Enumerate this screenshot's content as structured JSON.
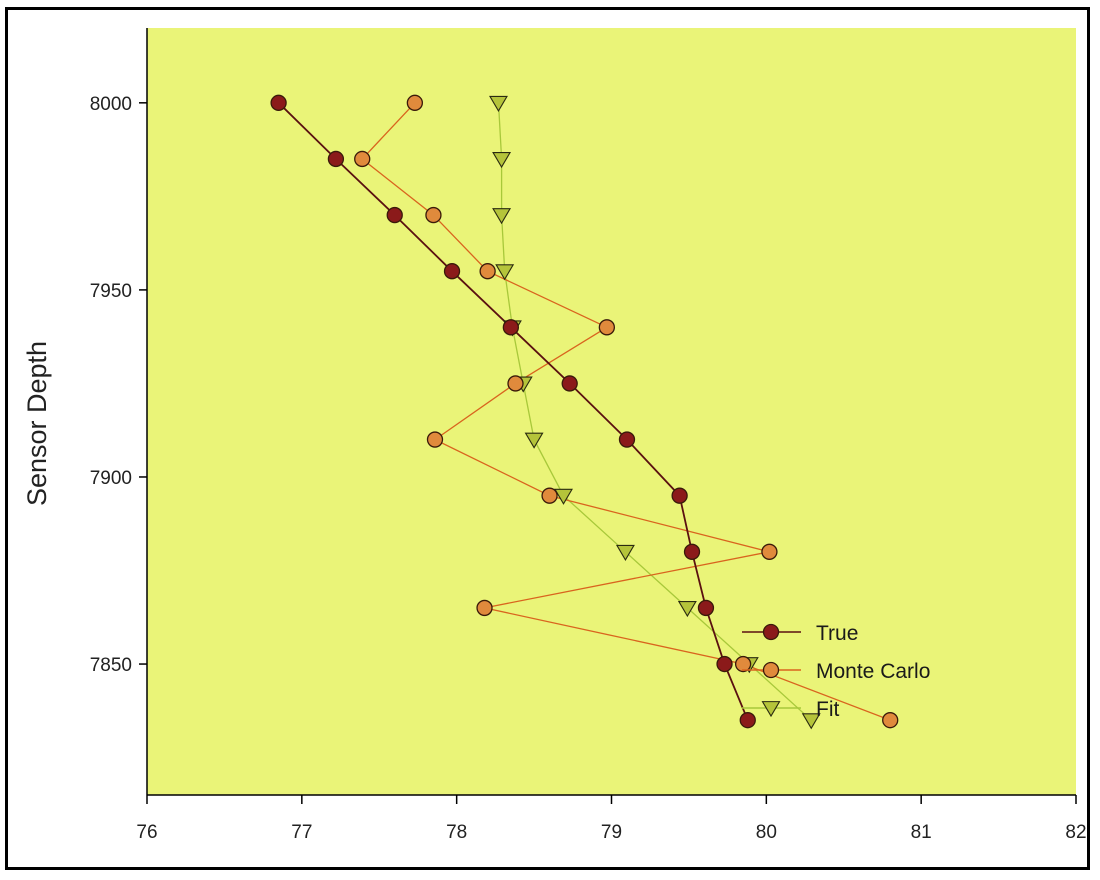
{
  "chart_data": {
    "type": "line",
    "title": "",
    "xlabel": "",
    "ylabel": "Sensor Depth",
    "xlim": [
      76,
      82
    ],
    "ylim": [
      8020,
      7815
    ],
    "x_ticks": [
      76,
      77,
      78,
      79,
      80,
      81,
      82
    ],
    "y_ticks": [
      7850,
      7900,
      7950,
      8000
    ],
    "plot_background": "#EAF478",
    "legend_position": "bottom-right",
    "series": [
      {
        "name": "True",
        "marker": "circle",
        "line_color": "#5A1010",
        "marker_color": "#8B1A1A",
        "points": [
          {
            "x": 79.88,
            "y": 7835
          },
          {
            "x": 79.73,
            "y": 7850
          },
          {
            "x": 79.61,
            "y": 7865
          },
          {
            "x": 79.52,
            "y": 7880
          },
          {
            "x": 79.44,
            "y": 7895
          },
          {
            "x": 79.1,
            "y": 7910
          },
          {
            "x": 78.73,
            "y": 7925
          },
          {
            "x": 78.35,
            "y": 7940
          },
          {
            "x": 77.97,
            "y": 7955
          },
          {
            "x": 77.6,
            "y": 7970
          },
          {
            "x": 77.22,
            "y": 7985
          },
          {
            "x": 76.85,
            "y": 8000
          }
        ]
      },
      {
        "name": "Monte Carlo",
        "marker": "circle",
        "line_color": "#D9641E",
        "marker_color": "#E08A3C",
        "points": [
          {
            "x": 80.8,
            "y": 7835
          },
          {
            "x": 79.85,
            "y": 7850
          },
          {
            "x": 78.18,
            "y": 7865
          },
          {
            "x": 80.02,
            "y": 7880
          },
          {
            "x": 78.6,
            "y": 7895
          },
          {
            "x": 77.86,
            "y": 7910
          },
          {
            "x": 78.38,
            "y": 7925
          },
          {
            "x": 78.97,
            "y": 7940
          },
          {
            "x": 78.2,
            "y": 7955
          },
          {
            "x": 77.85,
            "y": 7970
          },
          {
            "x": 77.39,
            "y": 7985
          },
          {
            "x": 77.73,
            "y": 8000
          }
        ]
      },
      {
        "name": "Fit",
        "marker": "triangle-down",
        "line_color": "#A8C83A",
        "marker_color": "#B5C43A",
        "points": [
          {
            "x": 80.29,
            "y": 7835
          },
          {
            "x": 79.89,
            "y": 7850
          },
          {
            "x": 79.49,
            "y": 7865
          },
          {
            "x": 79.09,
            "y": 7880
          },
          {
            "x": 78.69,
            "y": 7895
          },
          {
            "x": 78.5,
            "y": 7910
          },
          {
            "x": 78.43,
            "y": 7925
          },
          {
            "x": 78.36,
            "y": 7940
          },
          {
            "x": 78.31,
            "y": 7955
          },
          {
            "x": 78.29,
            "y": 7970
          },
          {
            "x": 78.29,
            "y": 7985
          },
          {
            "x": 78.27,
            "y": 8000
          }
        ]
      }
    ]
  }
}
